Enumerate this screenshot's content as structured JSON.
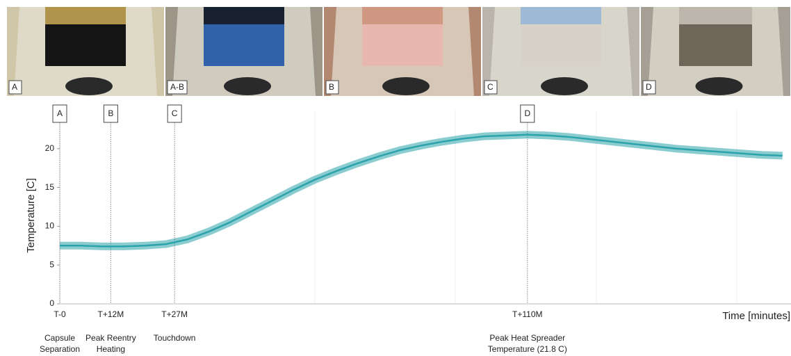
{
  "chart_data": {
    "type": "line",
    "y_label": "Temperature [C]",
    "x_label": "Time [minutes]",
    "color": "#2ba3ab",
    "x": [
      0,
      5,
      10,
      15,
      20,
      25,
      30,
      35,
      40,
      45,
      50,
      55,
      60,
      65,
      70,
      75,
      80,
      85,
      90,
      95,
      100,
      105,
      110,
      115,
      120,
      125,
      130,
      135,
      140,
      145,
      150,
      155,
      160,
      165,
      170
    ],
    "values": [
      7.5,
      7.5,
      7.4,
      7.4,
      7.5,
      7.7,
      8.3,
      9.3,
      10.5,
      11.9,
      13.3,
      14.7,
      16.0,
      17.1,
      18.1,
      19.0,
      19.8,
      20.4,
      20.9,
      21.3,
      21.6,
      21.7,
      21.8,
      21.7,
      21.5,
      21.2,
      20.9,
      20.6,
      20.3,
      20.0,
      19.8,
      19.6,
      19.4,
      19.2,
      19.1
    ],
    "xlim": [
      0,
      172
    ],
    "ylim": [
      0,
      25
    ],
    "yticks": [
      0,
      5,
      10,
      15,
      20
    ],
    "xticks": [
      {
        "value": 0,
        "label": "T-0"
      },
      {
        "value": 12,
        "label": "T+12M"
      },
      {
        "value": 27,
        "label": "T+27M"
      },
      {
        "value": 110,
        "label": "T+110M"
      }
    ],
    "events": [
      {
        "marker": "A",
        "caption": [
          "Capsule",
          "Separation"
        ]
      },
      {
        "marker": "B",
        "caption": [
          "Peak Reentry",
          "Heating"
        ]
      },
      {
        "marker": "C",
        "caption": [
          "Touchdown"
        ]
      },
      {
        "marker": "D",
        "caption": [
          "Peak Heat Spreader",
          "Temperature (21.8 C)"
        ]
      }
    ],
    "photos": [
      {
        "label": "A"
      },
      {
        "label": "A-B"
      },
      {
        "label": "B"
      },
      {
        "label": "C"
      },
      {
        "label": "D"
      }
    ]
  }
}
